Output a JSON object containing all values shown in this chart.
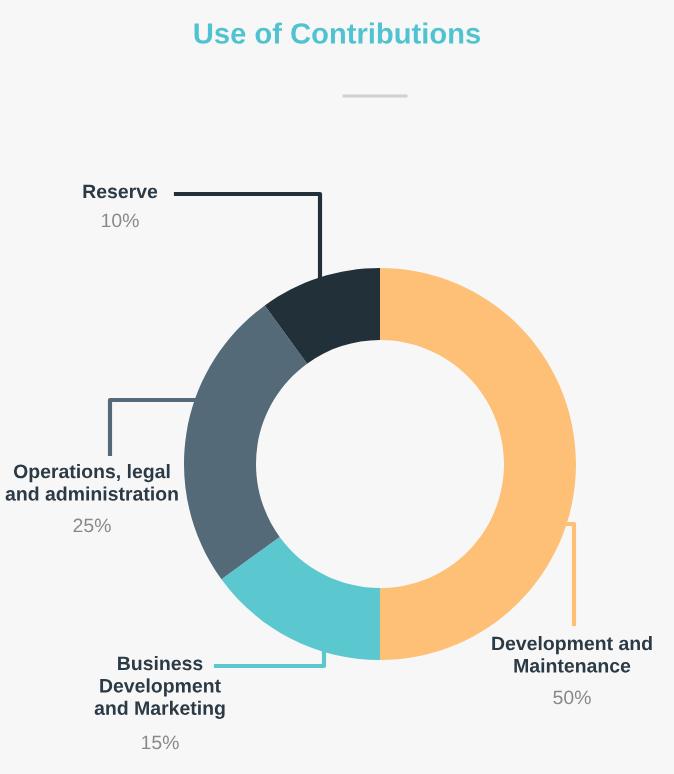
{
  "chart_data": {
    "type": "donut",
    "title": "Use of Contributions",
    "categories": [
      "Development and\nMaintenance",
      "Business\nDevelopment\nand Marketing",
      "Operations, legal\nand administration",
      "Reserve"
    ],
    "values": [
      50,
      15,
      25,
      10
    ],
    "value_labels": [
      "50%",
      "15%",
      "25%",
      "10%"
    ],
    "colors": [
      "#fdc076",
      "#5bc8d0",
      "#546a78",
      "#22303a"
    ],
    "legend": false
  }
}
